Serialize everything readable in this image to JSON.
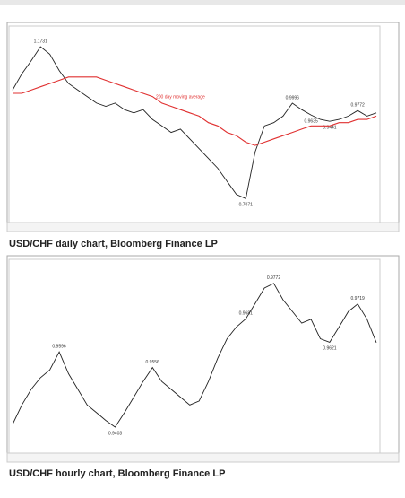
{
  "chart_data": [
    {
      "type": "line",
      "caption": "USD/CHF daily chart, Bloomberg Finance LP",
      "categories": [
        null,
        null,
        null,
        null,
        null,
        null,
        null,
        null,
        null,
        null,
        null,
        null,
        null,
        null,
        null,
        null,
        null,
        null,
        null,
        null,
        null,
        null,
        null,
        null,
        null,
        null,
        null,
        null,
        null,
        null,
        null,
        null,
        null,
        null,
        null,
        null,
        null,
        null,
        null,
        null
      ],
      "ylim": [
        0.65,
        1.22
      ],
      "series": [
        {
          "name": "USD/CHF",
          "color": "#222222",
          "values": [
            1.04,
            1.09,
            1.13,
            1.1731,
            1.15,
            1.1,
            1.06,
            1.04,
            1.02,
            1.0,
            0.99,
            1.0,
            0.98,
            0.97,
            0.98,
            0.95,
            0.93,
            0.91,
            0.92,
            0.89,
            0.86,
            0.83,
            0.8,
            0.76,
            0.72,
            0.7071,
            0.85,
            0.93,
            0.94,
            0.96,
            0.9996,
            0.98,
            0.9635,
            0.95,
            0.9441,
            0.95,
            0.96,
            0.9772,
            0.96,
            0.97
          ],
          "value_labels": [
            null,
            null,
            null,
            "1.1731",
            null,
            null,
            null,
            null,
            null,
            null,
            null,
            null,
            null,
            null,
            null,
            null,
            null,
            null,
            null,
            null,
            null,
            null,
            null,
            null,
            null,
            "0.7071",
            null,
            null,
            null,
            null,
            "0.9996",
            null,
            "0.9635",
            null,
            "0.9441",
            null,
            null,
            "0.9772",
            null,
            null
          ]
        },
        {
          "name": "200 day moving average",
          "color": "#e03030",
          "values": [
            1.03,
            1.03,
            1.04,
            1.05,
            1.06,
            1.07,
            1.08,
            1.08,
            1.08,
            1.08,
            1.07,
            1.06,
            1.05,
            1.04,
            1.03,
            1.02,
            1.0,
            0.99,
            0.98,
            0.97,
            0.96,
            0.94,
            0.93,
            0.91,
            0.9,
            0.88,
            0.87,
            0.88,
            0.89,
            0.9,
            0.91,
            0.92,
            0.93,
            0.93,
            0.93,
            0.94,
            0.94,
            0.95,
            0.95,
            0.96
          ]
        }
      ]
    },
    {
      "type": "line",
      "caption": "USD/CHF hourly chart, Bloomberg Finance LP",
      "categories": [
        null,
        null,
        null,
        null,
        null,
        null,
        null,
        null,
        null,
        null,
        null,
        null,
        null,
        null,
        null,
        null,
        null,
        null,
        null,
        null,
        null,
        null,
        null,
        null,
        null,
        null,
        null,
        null,
        null,
        null,
        null,
        null,
        null,
        null,
        null,
        null,
        null,
        null,
        null,
        null
      ],
      "ylim": [
        0.935,
        0.982
      ],
      "series": [
        {
          "name": "USD/CHF",
          "color": "#222222",
          "values": [
            0.941,
            0.946,
            0.95,
            0.953,
            0.955,
            0.9596,
            0.954,
            0.95,
            0.946,
            0.944,
            0.942,
            0.9403,
            0.944,
            0.948,
            0.952,
            0.9556,
            0.952,
            0.95,
            0.948,
            0.946,
            0.947,
            0.952,
            0.958,
            0.963,
            0.966,
            0.9681,
            0.972,
            0.976,
            0.9772,
            0.973,
            0.97,
            0.967,
            0.968,
            0.963,
            0.9621,
            0.966,
            0.97,
            0.9719,
            0.968,
            0.962
          ],
          "value_labels": [
            null,
            null,
            null,
            null,
            null,
            "0.9596",
            null,
            null,
            null,
            null,
            null,
            "0.9403",
            null,
            null,
            null,
            "0.9556",
            null,
            null,
            null,
            null,
            null,
            null,
            null,
            null,
            null,
            "0.9681",
            null,
            null,
            "0.9772",
            null,
            null,
            null,
            null,
            null,
            "0.9621",
            null,
            null,
            "0.9719",
            null,
            null
          ]
        }
      ]
    }
  ]
}
